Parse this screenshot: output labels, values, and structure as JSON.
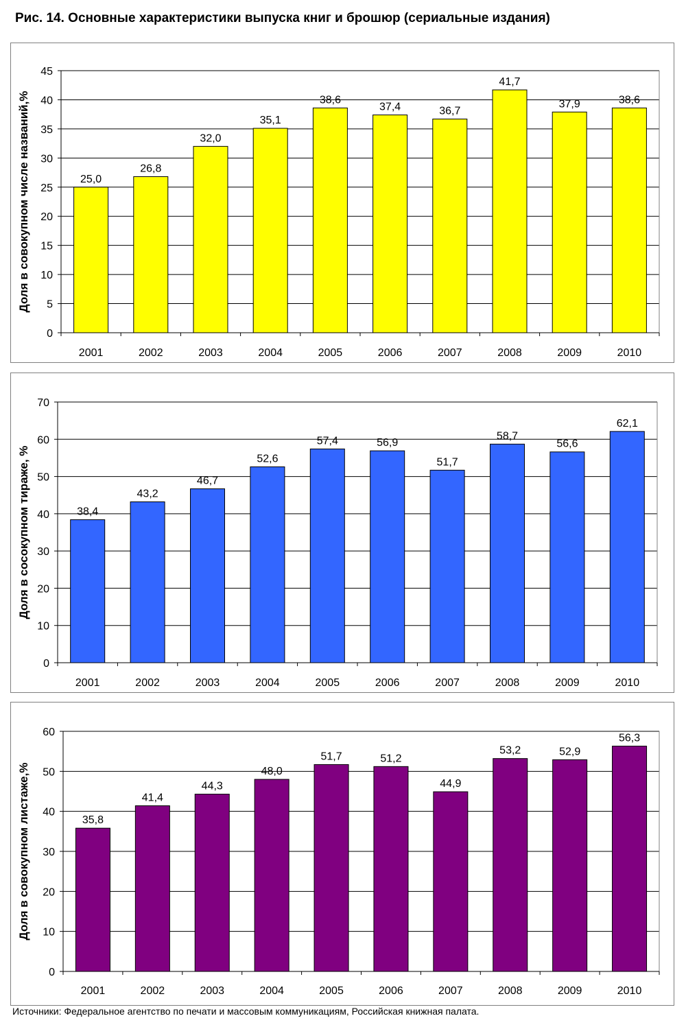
{
  "figure": {
    "title": "Рис. 14. Основные характеристики выпуска книг и брошюр (сериальные издания)",
    "source": "Источники: Федеральное агентство по печати и массовым коммуникациям, Российская книжная палата."
  },
  "chart_data": [
    {
      "type": "bar",
      "title": "",
      "xlabel": "",
      "ylabel": "Доля в совокупном числе названий,%",
      "categories": [
        "2001",
        "2002",
        "2003",
        "2004",
        "2005",
        "2006",
        "2007",
        "2008",
        "2009",
        "2010"
      ],
      "values": [
        25.0,
        26.8,
        32.0,
        35.1,
        38.6,
        37.4,
        36.7,
        41.7,
        37.9,
        38.6
      ],
      "value_labels": [
        "25,0",
        "26,8",
        "32,0",
        "35,1",
        "38,6",
        "37,4",
        "36,7",
        "41,7",
        "37,9",
        "38,6"
      ],
      "ylim": [
        0,
        45
      ],
      "yticks": [
        0,
        5,
        10,
        15,
        20,
        25,
        30,
        35,
        40,
        45
      ],
      "grid": true,
      "color": "#ffff00"
    },
    {
      "type": "bar",
      "title": "",
      "xlabel": "",
      "ylabel": "Доля в сосокупном тираже, %",
      "categories": [
        "2001",
        "2002",
        "2003",
        "2004",
        "2005",
        "2006",
        "2007",
        "2008",
        "2009",
        "2010"
      ],
      "values": [
        38.4,
        43.2,
        46.7,
        52.6,
        57.4,
        56.9,
        51.7,
        58.7,
        56.6,
        62.1
      ],
      "value_labels": [
        "38,4",
        "43,2",
        "46,7",
        "52,6",
        "57,4",
        "56,9",
        "51,7",
        "58,7",
        "56,6",
        "62,1"
      ],
      "ylim": [
        0,
        70
      ],
      "yticks": [
        0,
        10,
        20,
        30,
        40,
        50,
        60,
        70
      ],
      "grid": true,
      "color": "#3366ff"
    },
    {
      "type": "bar",
      "title": "",
      "xlabel": "",
      "ylabel": "Доля в совокупном листаже,%",
      "categories": [
        "2001",
        "2002",
        "2003",
        "2004",
        "2005",
        "2006",
        "2007",
        "2008",
        "2009",
        "2010"
      ],
      "values": [
        35.8,
        41.4,
        44.3,
        48.0,
        51.7,
        51.2,
        44.9,
        53.2,
        52.9,
        56.3
      ],
      "value_labels": [
        "35,8",
        "41,4",
        "44,3",
        "48,0",
        "51,7",
        "51,2",
        "44,9",
        "53,2",
        "52,9",
        "56,3"
      ],
      "ylim": [
        0,
        60
      ],
      "yticks": [
        0,
        10,
        20,
        30,
        40,
        50,
        60
      ],
      "grid": true,
      "color": "#800080"
    }
  ]
}
